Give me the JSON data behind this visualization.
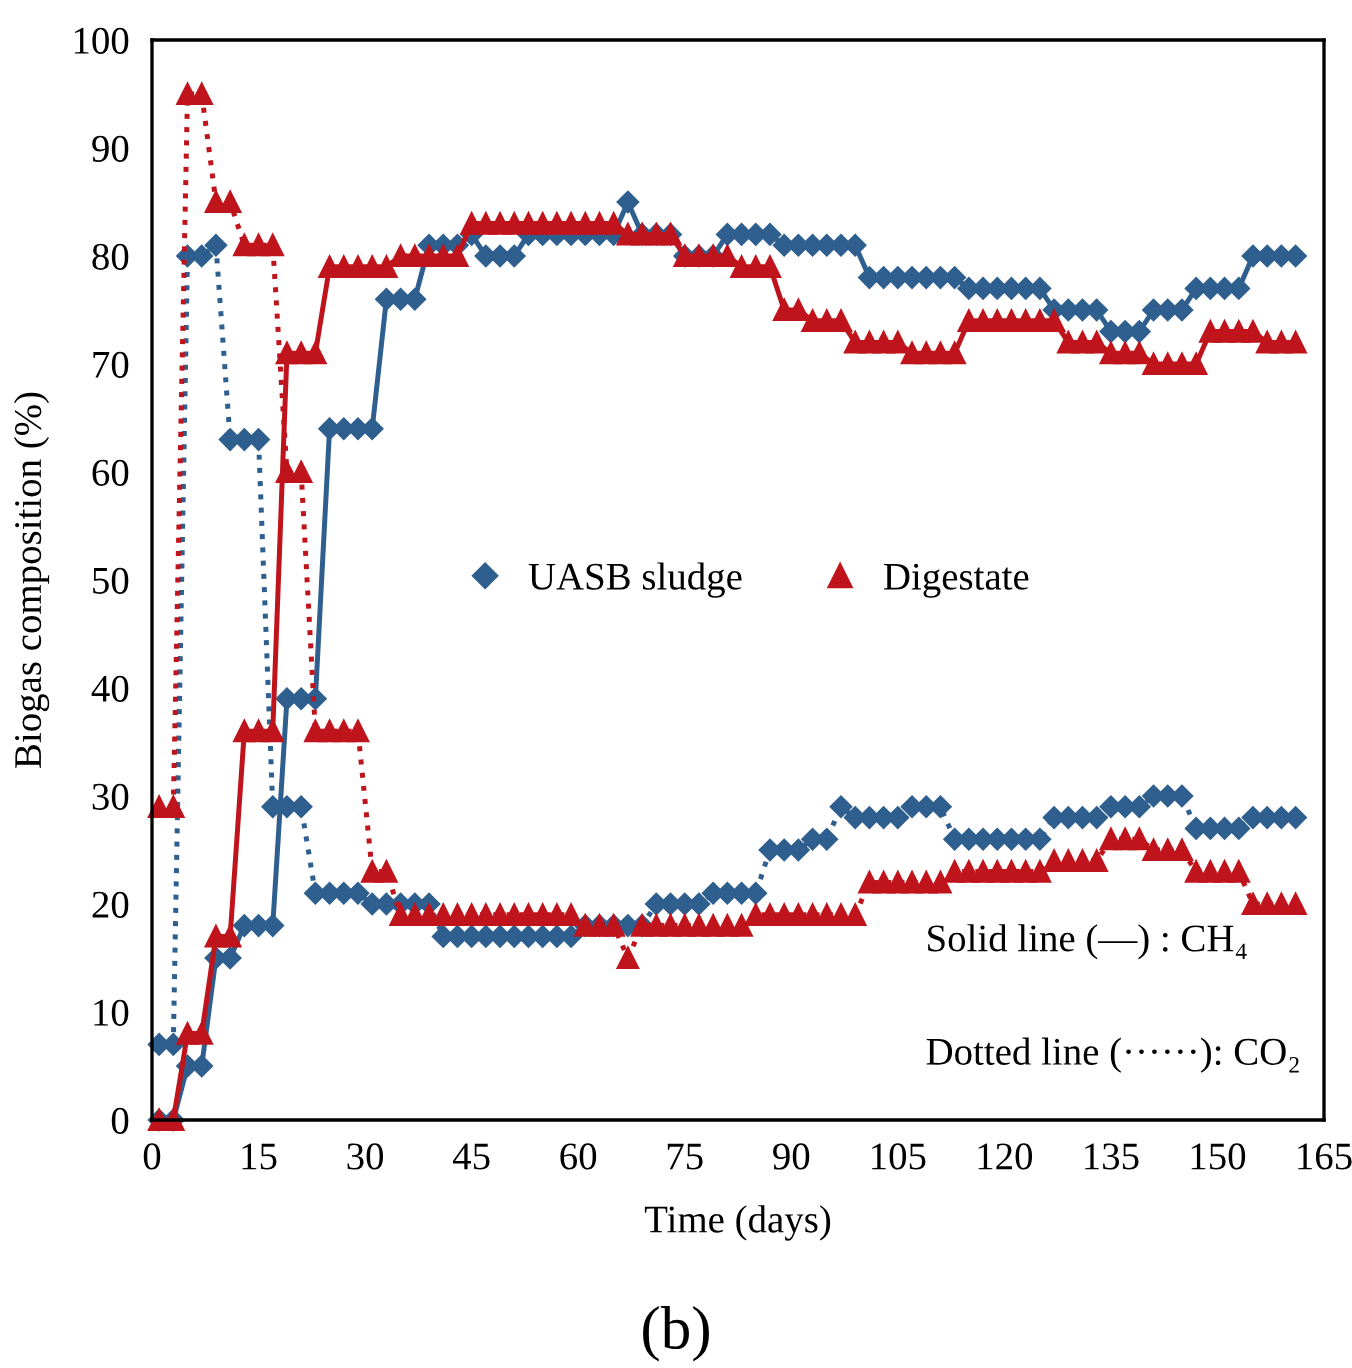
{
  "chart_data": {
    "type": "line",
    "xlabel": "Time (days)",
    "ylabel": "Biogas composition (%)",
    "x": [
      1,
      3,
      5,
      7,
      9,
      11,
      13,
      15,
      17,
      19,
      21,
      23,
      25,
      27,
      29,
      31,
      33,
      35,
      37,
      39,
      41,
      43,
      45,
      47,
      49,
      51,
      53,
      55,
      57,
      59,
      61,
      63,
      65,
      67,
      69,
      71,
      73,
      75,
      77,
      79,
      81,
      83,
      85,
      87,
      89,
      91,
      93,
      95,
      97,
      99,
      101,
      103,
      105,
      107,
      109,
      111,
      113,
      115,
      117,
      119,
      121,
      123,
      125,
      127,
      129,
      131,
      133,
      135,
      137,
      139,
      141,
      143,
      145,
      147,
      149,
      151,
      153,
      155,
      157,
      159,
      161
    ],
    "series": [
      {
        "name": "UASB sludge",
        "color": "#2f5f8e",
        "marker": "diamond",
        "line_style": "solid",
        "values": [
          0,
          0,
          5,
          5,
          15,
          15,
          18,
          18,
          18,
          39,
          39,
          39,
          64,
          64,
          64,
          64,
          76,
          76,
          76,
          81,
          81,
          81,
          82,
          80,
          80,
          80,
          82,
          82,
          82,
          82,
          82,
          82,
          82,
          85,
          82,
          82,
          82,
          80,
          80,
          80,
          82,
          82,
          82,
          82,
          81,
          81,
          81,
          81,
          81,
          81,
          78,
          78,
          78,
          78,
          78,
          78,
          78,
          77,
          77,
          77,
          77,
          77,
          77,
          75,
          75,
          75,
          75,
          73,
          73,
          73,
          75,
          75,
          75,
          77,
          77,
          77,
          77,
          80,
          80,
          80,
          80
        ]
      },
      {
        "color": "#2f5f8e",
        "marker": "diamond",
        "line_style": "dotted",
        "values": [
          7,
          7,
          80,
          80,
          81,
          63,
          63,
          63,
          29,
          29,
          29,
          21,
          21,
          21,
          21,
          20,
          20,
          20,
          20,
          20,
          17,
          17,
          17,
          17,
          17,
          17,
          17,
          17,
          17,
          17,
          18,
          18,
          18,
          18,
          18,
          20,
          20,
          20,
          20,
          21,
          21,
          21,
          21,
          25,
          25,
          25,
          26,
          26,
          29,
          28,
          28,
          28,
          28,
          29,
          29,
          29,
          26,
          26,
          26,
          26,
          26,
          26,
          26,
          28,
          28,
          28,
          28,
          29,
          29,
          29,
          30,
          30,
          30,
          27,
          27,
          27,
          27,
          28,
          28,
          28,
          28
        ]
      },
      {
        "name": "Digestate",
        "color": "#c0141c",
        "marker": "triangle",
        "line_style": "solid",
        "values": [
          0,
          0,
          8,
          8,
          17,
          17,
          36,
          36,
          36,
          71,
          71,
          71,
          79,
          79,
          79,
          79,
          79,
          80,
          80,
          80,
          80,
          80,
          83,
          83,
          83,
          83,
          83,
          83,
          83,
          83,
          83,
          83,
          83,
          82,
          82,
          82,
          82,
          80,
          80,
          80,
          80,
          79,
          79,
          79,
          75,
          75,
          74,
          74,
          74,
          72,
          72,
          72,
          72,
          71,
          71,
          71,
          71,
          74,
          74,
          74,
          74,
          74,
          74,
          74,
          72,
          72,
          72,
          71,
          71,
          71,
          70,
          70,
          70,
          70,
          73,
          73,
          73,
          73,
          72,
          72,
          72
        ]
      },
      {
        "color": "#c0141c",
        "marker": "triangle",
        "line_style": "dotted",
        "values": [
          29,
          29,
          95,
          95,
          85,
          85,
          81,
          81,
          81,
          60,
          60,
          36,
          36,
          36,
          36,
          23,
          23,
          19,
          19,
          19,
          19,
          19,
          19,
          19,
          19,
          19,
          19,
          19,
          19,
          19,
          18,
          18,
          18,
          15,
          18,
          18,
          18,
          18,
          18,
          18,
          18,
          18,
          19,
          19,
          19,
          19,
          19,
          19,
          19,
          19,
          22,
          22,
          22,
          22,
          22,
          22,
          23,
          23,
          23,
          23,
          23,
          23,
          23,
          24,
          24,
          24,
          24,
          26,
          26,
          26,
          25,
          25,
          25,
          23,
          23,
          23,
          23,
          20,
          20,
          20,
          20
        ]
      }
    ],
    "xlim": [
      0,
      165
    ],
    "xticks": [
      0,
      15,
      30,
      45,
      60,
      75,
      90,
      105,
      120,
      135,
      150,
      165
    ],
    "ylim": [
      0,
      100
    ],
    "yticks": [
      0,
      10,
      20,
      30,
      40,
      50,
      60,
      70,
      80,
      90,
      100
    ],
    "grid": false,
    "legend": "center",
    "annotations": [
      "Solid line (—) : CH₄",
      "Dotted line (······): CO₂",
      "(b)"
    ]
  }
}
